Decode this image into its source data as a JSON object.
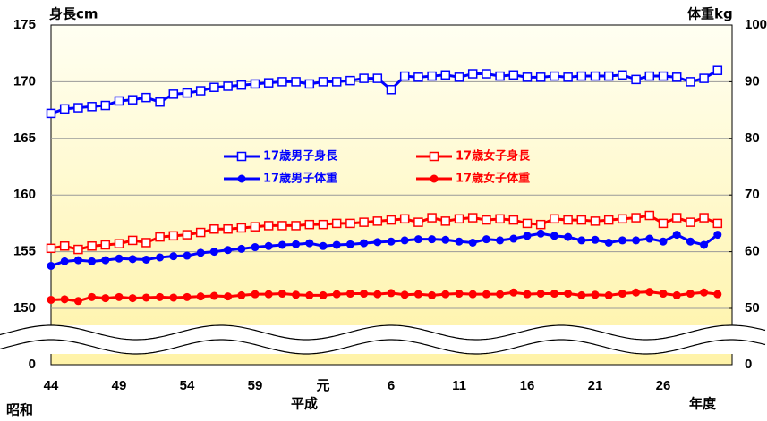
{
  "chart_data": {
    "type": "line",
    "y_title": "身長cm",
    "y2_title": "体重kg",
    "categories": [
      "44",
      null,
      null,
      null,
      null,
      "49",
      null,
      null,
      null,
      null,
      "54",
      null,
      null,
      null,
      null,
      "59",
      null,
      null,
      null,
      null,
      "元",
      null,
      null,
      null,
      null,
      "6",
      null,
      null,
      null,
      null,
      "11",
      null,
      null,
      null,
      null,
      "16",
      null,
      null,
      null,
      null,
      "21",
      null,
      null,
      null,
      null,
      "26",
      null,
      null,
      null,
      null
    ],
    "annotations": [
      "昭和",
      "平成",
      "年度"
    ],
    "series": [
      {
        "name": "17歳男子身長",
        "color": "#0000ff",
        "marker": "square",
        "axis": "y",
        "values": [
          167.2,
          167.6,
          167.7,
          167.8,
          167.9,
          168.3,
          168.4,
          168.6,
          168.2,
          168.9,
          169.0,
          169.2,
          169.5,
          169.6,
          169.7,
          169.8,
          169.9,
          170.0,
          170.0,
          169.8,
          170.0,
          170.0,
          170.1,
          170.3,
          170.3,
          169.3,
          170.5,
          170.4,
          170.5,
          170.6,
          170.4,
          170.7,
          170.7,
          170.5,
          170.6,
          170.4,
          170.4,
          170.5,
          170.4,
          170.5,
          170.5,
          170.5,
          170.6,
          170.2,
          170.5,
          170.5,
          170.4,
          170.0,
          170.3,
          171.0
        ]
      },
      {
        "name": "17歳女子身長",
        "color": "#ff0000",
        "marker": "square",
        "axis": "y",
        "values": [
          155.3,
          155.5,
          155.2,
          155.5,
          155.6,
          155.7,
          156.0,
          155.8,
          156.3,
          156.4,
          156.5,
          156.7,
          157.0,
          157.0,
          157.1,
          157.2,
          157.3,
          157.3,
          157.3,
          157.4,
          157.4,
          157.5,
          157.5,
          157.6,
          157.7,
          157.8,
          157.9,
          157.6,
          158.0,
          157.7,
          157.9,
          158.0,
          157.8,
          157.9,
          157.8,
          157.5,
          157.4,
          157.9,
          157.8,
          157.8,
          157.7,
          157.8,
          157.9,
          158.0,
          158.2,
          157.5,
          158.0,
          157.6,
          158.0,
          157.5
        ]
      },
      {
        "name": "17歳男子体重",
        "color": "#0000ff",
        "marker": "circle",
        "axis": "y2",
        "values": [
          57.5,
          58.3,
          58.5,
          58.3,
          58.5,
          58.8,
          58.7,
          58.6,
          59.0,
          59.2,
          59.3,
          59.8,
          60.0,
          60.3,
          60.5,
          60.8,
          61.0,
          61.2,
          61.3,
          61.5,
          61.0,
          61.2,
          61.3,
          61.5,
          61.7,
          61.8,
          62.0,
          62.2,
          62.2,
          62.1,
          61.8,
          61.6,
          62.2,
          62.0,
          62.3,
          62.8,
          63.2,
          62.8,
          62.6,
          62.0,
          62.1,
          61.6,
          62.0,
          62.0,
          62.3,
          61.8,
          63.0,
          61.8,
          61.2,
          63.0
        ]
      },
      {
        "name": "17歳女子体重",
        "color": "#ff0000",
        "marker": "circle",
        "axis": "y2",
        "values": [
          51.5,
          51.6,
          51.3,
          52.0,
          51.8,
          52.0,
          51.8,
          51.9,
          52.0,
          51.9,
          52.0,
          52.1,
          52.2,
          52.1,
          52.3,
          52.5,
          52.5,
          52.6,
          52.4,
          52.3,
          52.3,
          52.5,
          52.6,
          52.6,
          52.5,
          52.7,
          52.4,
          52.5,
          52.3,
          52.5,
          52.6,
          52.5,
          52.5,
          52.5,
          52.8,
          52.5,
          52.6,
          52.6,
          52.6,
          52.3,
          52.4,
          52.3,
          52.6,
          52.8,
          52.9,
          52.6,
          52.3,
          52.6,
          52.8,
          52.5
        ]
      }
    ],
    "ylim": [
      0,
      175
    ],
    "y_break": [
      0,
      150
    ],
    "yticks": [
      0,
      150,
      155,
      160,
      165,
      170,
      175
    ],
    "y2lim": [
      0,
      100
    ],
    "y2_break": [
      0,
      50
    ],
    "y2ticks": [
      0,
      50,
      60,
      70,
      80,
      90,
      100
    ],
    "grid": true,
    "legend": "inside"
  }
}
